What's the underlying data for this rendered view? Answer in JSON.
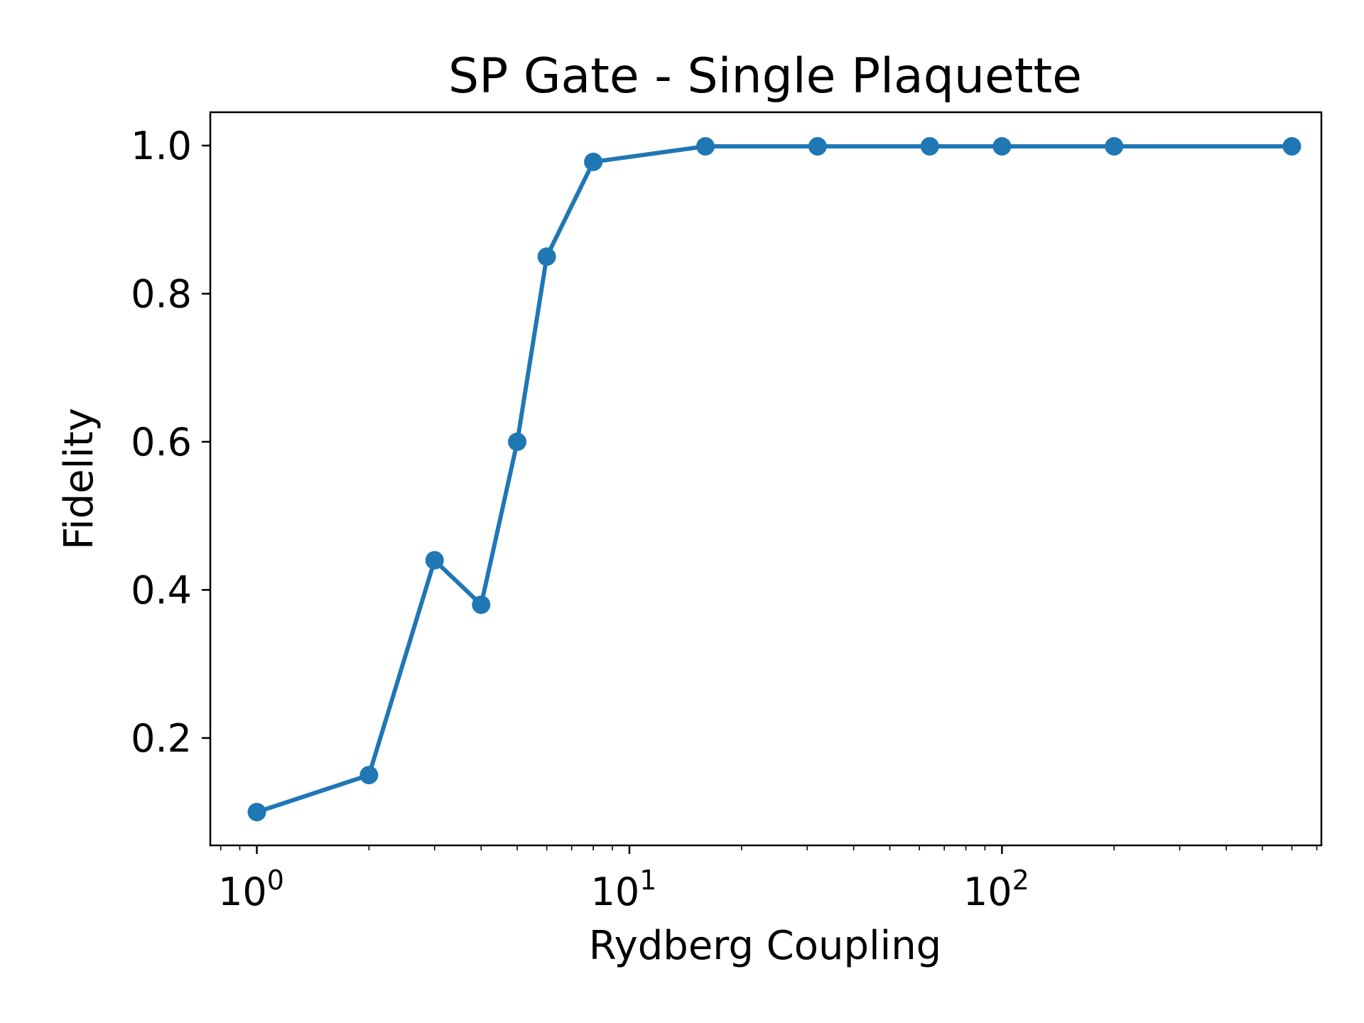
{
  "chart_data": {
    "type": "line",
    "title": "SP Gate - Single Plaquette",
    "xlabel": "Rydberg Coupling",
    "ylabel": "Fidelity",
    "xscale": "log",
    "xlim": [
      0.75,
      720
    ],
    "ylim": [
      0.055,
      1.045
    ],
    "grid": false,
    "color": "#1f77b4",
    "marker": "circle",
    "x_ticks": [
      {
        "value": 1,
        "base": "10",
        "exp": "0"
      },
      {
        "value": 10,
        "base": "10",
        "exp": "1"
      },
      {
        "value": 100,
        "base": "10",
        "exp": "2"
      }
    ],
    "y_ticks": [
      {
        "value": 0.2,
        "label": "0.2"
      },
      {
        "value": 0.4,
        "label": "0.4"
      },
      {
        "value": 0.6,
        "label": "0.6"
      },
      {
        "value": 0.8,
        "label": "0.8"
      },
      {
        "value": 1.0,
        "label": "1.0"
      }
    ],
    "series": [
      {
        "x": [
          1,
          2,
          3,
          4,
          5,
          6,
          8,
          16,
          32,
          64,
          100,
          200,
          600
        ],
        "y": [
          0.1,
          0.15,
          0.44,
          0.38,
          0.6,
          0.85,
          0.978,
          0.999,
          0.999,
          0.999,
          0.999,
          0.999,
          0.999
        ]
      }
    ]
  }
}
